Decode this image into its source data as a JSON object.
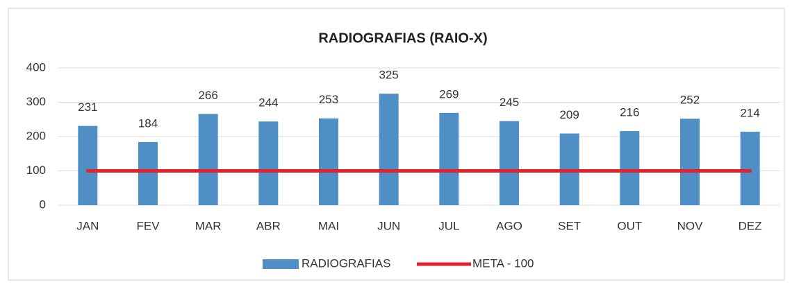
{
  "chart_data": {
    "type": "bar",
    "title": "RADIOGRAFIAS (RAIO-X)",
    "categories": [
      "JAN",
      "FEV",
      "MAR",
      "ABR",
      "MAI",
      "JUN",
      "JUL",
      "AGO",
      "SET",
      "OUT",
      "NOV",
      "DEZ"
    ],
    "series": [
      {
        "name": "RADIOGRAFIAS",
        "type": "bar",
        "color": "#4f8fc6",
        "values": [
          231,
          184,
          266,
          244,
          253,
          325,
          269,
          245,
          209,
          216,
          252,
          214
        ]
      },
      {
        "name": "META - 100",
        "type": "line",
        "color": "#e3232c",
        "values": [
          100,
          100,
          100,
          100,
          100,
          100,
          100,
          100,
          100,
          100,
          100,
          100
        ]
      }
    ],
    "ylim": [
      0,
      400
    ],
    "yticks": [
      0,
      100,
      200,
      300,
      400
    ],
    "grid": true,
    "legend": "bottom"
  }
}
